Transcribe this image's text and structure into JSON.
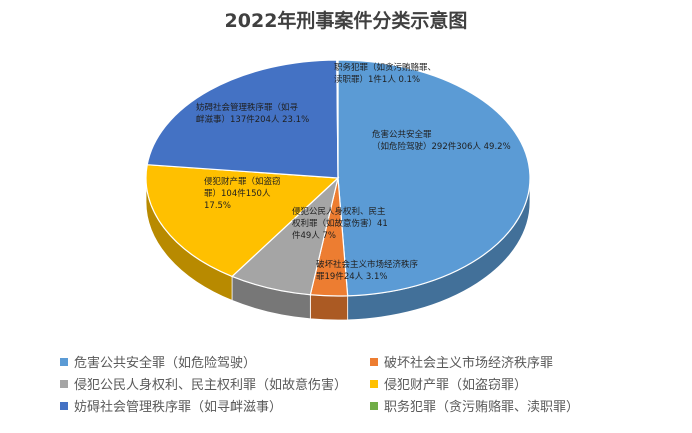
{
  "chart_data": {
    "type": "pie",
    "style": "3d",
    "title": "2022年刑事案件分类示意图",
    "legend_position": "bottom",
    "slices": [
      {
        "name": "危害公共安全罪（如危险驾驶）",
        "cases": 292,
        "people": 306,
        "percent": 49.2,
        "color": "#5B9BD5",
        "label": [
          "危害公共安全罪",
          "（如危险驾驶）292件306人 49.2%"
        ]
      },
      {
        "name": "破坏社会主义市场经济秩序罪",
        "cases": 19,
        "people": 24,
        "percent": 3.1,
        "color": "#ED7D31",
        "label": [
          "破坏社会主义市场经济秩序",
          "罪19件24人 3.1%"
        ]
      },
      {
        "name": "侵犯公民人身权利、民主权利罪（如故意伤害）",
        "cases": 41,
        "people": 49,
        "percent": 7.0,
        "color": "#A5A5A5",
        "label": [
          "侵犯公民人身权利、民主",
          "权利罪（如故意伤害）41",
          "件49人 7%"
        ]
      },
      {
        "name": "侵犯财产罪（如盗窃罪）",
        "cases": 104,
        "people": 150,
        "percent": 17.5,
        "color": "#FFC000",
        "label": [
          "侵犯财产罪（如盗窃",
          "罪）104件150人",
          "17.5%"
        ]
      },
      {
        "name": "妨碍社会管理秩序罪（如寻衅滋事）",
        "cases": 137,
        "people": 204,
        "percent": 23.1,
        "color": "#4472C4",
        "label": [
          "妨碍社会管理秩序罪（如寻",
          "衅滋事）137件204人 23.1%"
        ]
      },
      {
        "name": "职务犯罪（贪污贿赂罪、渎职罪）",
        "cases": 1,
        "people": 1,
        "percent": 0.1,
        "color": "#70AD47",
        "label": [
          "职务犯罪（如贪污贿赂罪、",
          "渎职罪）1件1人 0.1%"
        ]
      }
    ]
  }
}
